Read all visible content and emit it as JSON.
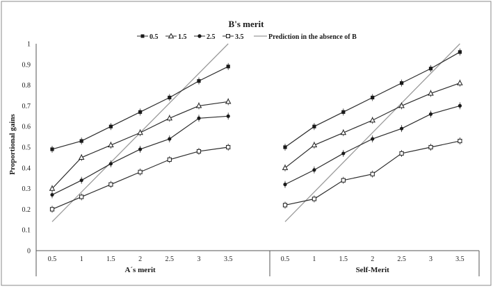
{
  "chart_data": {
    "type": "line",
    "legend": {
      "title": "B's merit",
      "placement": "top-center",
      "items": [
        {
          "label": "0.5",
          "marker": "filled-square"
        },
        {
          "label": "1.5",
          "marker": "open-triangle"
        },
        {
          "label": "2.5",
          "marker": "filled-circle"
        },
        {
          "label": "3.5",
          "marker": "open-square"
        },
        {
          "label": "Prediction in the absence of B",
          "marker": "line"
        }
      ]
    },
    "ylabel": "Proportional gains",
    "ylim": [
      0,
      1
    ],
    "yticks": [
      "0",
      "0.1",
      "0.2",
      "0.3",
      "0.4",
      "0.5",
      "0.6",
      "0.7",
      "0.8",
      "0.9",
      "1"
    ],
    "grid": false,
    "colors": {
      "series": "#2b2b2b",
      "prediction": "#9a9a9a",
      "axis": "#555555",
      "frame": "#8a8a8a"
    },
    "panels": [
      {
        "xlabel": "A´s merit",
        "categories": [
          "0.5",
          "1",
          "1.5",
          "2",
          "2.5",
          "3",
          "3.5"
        ],
        "series": [
          {
            "name": "0.5",
            "values": [
              0.49,
              0.53,
              0.6,
              0.67,
              0.74,
              0.82,
              0.89
            ]
          },
          {
            "name": "1.5",
            "values": [
              0.3,
              0.45,
              0.51,
              0.57,
              0.64,
              0.7,
              0.72
            ]
          },
          {
            "name": "2.5",
            "values": [
              0.27,
              0.34,
              0.42,
              0.49,
              0.54,
              0.64,
              0.65
            ]
          },
          {
            "name": "3.5",
            "values": [
              0.2,
              0.26,
              0.32,
              0.38,
              0.44,
              0.48,
              0.5
            ]
          }
        ],
        "prediction": {
          "x": [
            0.5,
            3.5
          ],
          "y": [
            0.14,
            1.0
          ]
        }
      },
      {
        "xlabel": "Self-Merit",
        "categories": [
          "0.5",
          "1",
          "1.5",
          "2",
          "2.5",
          "3",
          "3.5"
        ],
        "series": [
          {
            "name": "0.5",
            "values": [
              0.5,
              0.6,
              0.67,
              0.74,
              0.81,
              0.88,
              0.96
            ]
          },
          {
            "name": "1.5",
            "values": [
              0.4,
              0.51,
              0.57,
              0.63,
              0.7,
              0.76,
              0.81
            ]
          },
          {
            "name": "2.5",
            "values": [
              0.32,
              0.39,
              0.47,
              0.54,
              0.59,
              0.66,
              0.7
            ]
          },
          {
            "name": "3.5",
            "values": [
              0.22,
              0.25,
              0.34,
              0.37,
              0.47,
              0.5,
              0.53
            ]
          }
        ],
        "prediction": {
          "x": [
            0.5,
            3.5
          ],
          "y": [
            0.14,
            1.0
          ]
        }
      }
    ]
  }
}
